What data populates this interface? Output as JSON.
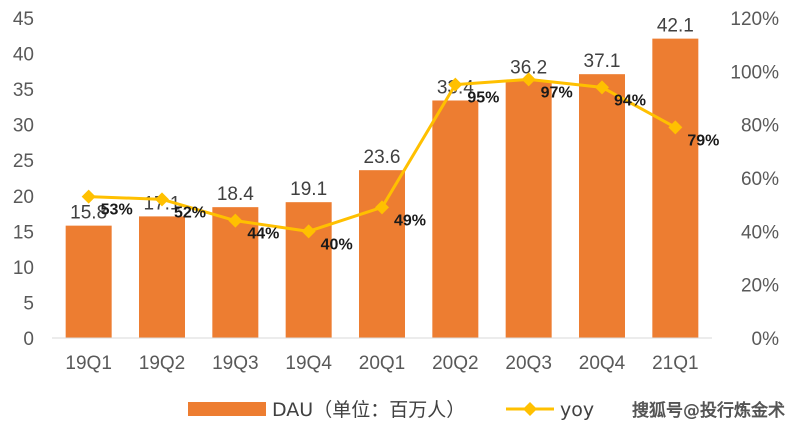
{
  "chart_data": {
    "type": "bar",
    "categories": [
      "19Q1",
      "19Q2",
      "19Q3",
      "19Q4",
      "20Q1",
      "20Q2",
      "20Q3",
      "20Q4",
      "21Q1"
    ],
    "series": [
      {
        "name": "DAU（单位：百万人）",
        "type": "bar",
        "axis": "left",
        "values": [
          15.8,
          17.1,
          18.4,
          19.1,
          23.6,
          33.4,
          36.2,
          37.1,
          42.1
        ]
      },
      {
        "name": "yoy",
        "type": "line",
        "axis": "right",
        "values": [
          53,
          52,
          44,
          40,
          49,
          95,
          97,
          94,
          79
        ]
      }
    ],
    "value_labels": [
      "15.8",
      "17.1",
      "18.4",
      "19.1",
      "23.6",
      "33.4",
      "36.2",
      "37.1",
      "42.1"
    ],
    "yoy_labels": [
      "53%",
      "52%",
      "44%",
      "40%",
      "49%",
      "95%",
      "97%",
      "94%",
      "79%"
    ],
    "y_left": {
      "min": 0,
      "max": 45,
      "ticks": [
        "0",
        "5",
        "10",
        "15",
        "20",
        "25",
        "30",
        "35",
        "40",
        "45"
      ]
    },
    "y_right": {
      "min": 0,
      "max": 120,
      "ticks": [
        "0%",
        "20%",
        "40%",
        "60%",
        "80%",
        "100%",
        "120%"
      ]
    },
    "grid": false,
    "legend_position": "bottom",
    "colors": {
      "bar": "#ED7D31",
      "line": "#FFC000"
    }
  },
  "watermark": "搜狐号@投行炼金术"
}
